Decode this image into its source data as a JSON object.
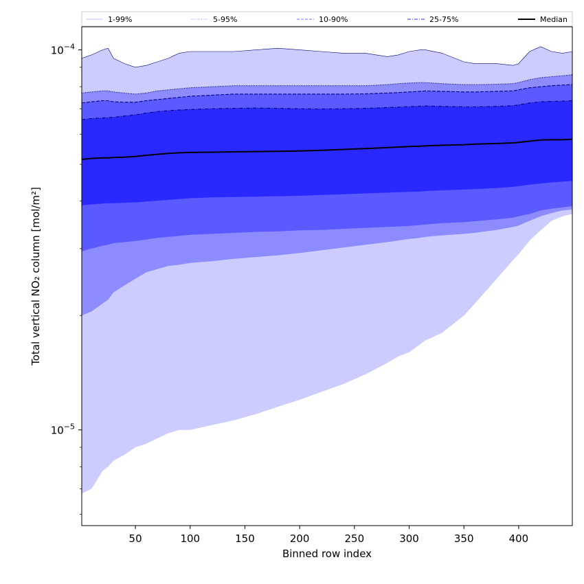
{
  "chart_data": {
    "type": "area",
    "title": "",
    "xlabel": "Binned row index",
    "ylabel": "Total vertical NO₂ column [mol/m²]",
    "xlim": [
      1,
      449
    ],
    "ylim": [
      5.6e-06,
      0.000115
    ],
    "yscale": "log",
    "xticks": [
      50,
      100,
      150,
      200,
      250,
      300,
      350,
      400
    ],
    "yticks": [
      {
        "value": 1e-05,
        "base": "10",
        "exp": "−5"
      },
      {
        "value": 0.0001,
        "base": "10",
        "exp": "−4"
      }
    ],
    "grid": false,
    "legend_position": "top",
    "x": [
      1,
      10,
      20,
      25,
      30,
      40,
      50,
      60,
      70,
      80,
      90,
      100,
      120,
      140,
      160,
      180,
      200,
      220,
      240,
      260,
      280,
      290,
      300,
      310,
      315,
      330,
      350,
      360,
      380,
      395,
      400,
      410,
      420,
      430,
      440,
      449
    ],
    "bands": [
      {
        "name": "1-99%",
        "lower": [
          6.8e-06,
          7e-06,
          7.8e-06,
          8e-06,
          8.3e-06,
          8.6e-06,
          9e-06,
          9.2e-06,
          9.5e-06,
          9.8e-06,
          1e-05,
          1e-05,
          1.03e-05,
          1.06e-05,
          1.1e-05,
          1.15e-05,
          1.2e-05,
          1.26e-05,
          1.32e-05,
          1.4e-05,
          1.5e-05,
          1.56e-05,
          1.6e-05,
          1.68e-05,
          1.72e-05,
          1.8e-05,
          2e-05,
          2.15e-05,
          2.5e-05,
          2.8e-05,
          2.9e-05,
          3.15e-05,
          3.35e-05,
          3.55e-05,
          3.65e-05,
          3.7e-05
        ],
        "upper": [
          9.5e-05,
          9.7e-05,
          0.0001,
          0.000101,
          9.5e-05,
          9.2e-05,
          9e-05,
          9.1e-05,
          9.3e-05,
          9.5e-05,
          9.8e-05,
          9.9e-05,
          9.9e-05,
          9.9e-05,
          0.0001,
          0.000101,
          0.0001,
          9.9e-05,
          9.8e-05,
          9.8e-05,
          9.6e-05,
          9.7e-05,
          9.9e-05,
          0.0001,
          0.0001,
          9.8e-05,
          9.3e-05,
          9.2e-05,
          9.2e-05,
          9.1e-05,
          9.2e-05,
          9.9e-05,
          0.000102,
          9.9e-05,
          9.8e-05,
          9.9e-05
        ]
      },
      {
        "name": "5-95%",
        "lower": [
          2e-05,
          2.05e-05,
          2.15e-05,
          2.2e-05,
          2.3e-05,
          2.4e-05,
          2.5e-05,
          2.6e-05,
          2.65e-05,
          2.7e-05,
          2.72e-05,
          2.75e-05,
          2.78e-05,
          2.82e-05,
          2.85e-05,
          2.88e-05,
          2.92e-05,
          2.97e-05,
          3.02e-05,
          3.07e-05,
          3.12e-05,
          3.15e-05,
          3.18e-05,
          3.2e-05,
          3.22e-05,
          3.25e-05,
          3.28e-05,
          3.3e-05,
          3.36e-05,
          3.42e-05,
          3.45e-05,
          3.55e-05,
          3.65e-05,
          3.72e-05,
          3.78e-05,
          3.8e-05
        ],
        "upper": [
          7.7e-05,
          7.75e-05,
          7.8e-05,
          7.8e-05,
          7.75e-05,
          7.7e-05,
          7.65e-05,
          7.7e-05,
          7.8e-05,
          7.85e-05,
          7.9e-05,
          7.95e-05,
          8e-05,
          8.05e-05,
          8.05e-05,
          8.05e-05,
          8.05e-05,
          8.05e-05,
          8.05e-05,
          8.05e-05,
          8.1e-05,
          8.15e-05,
          8.18e-05,
          8.2e-05,
          8.2e-05,
          8.15e-05,
          8.1e-05,
          8.1e-05,
          8.12e-05,
          8.15e-05,
          8.2e-05,
          8.35e-05,
          8.45e-05,
          8.5e-05,
          8.55e-05,
          8.6e-05
        ]
      },
      {
        "name": "10-90%",
        "lower": [
          2.95e-05,
          3e-05,
          3.05e-05,
          3.07e-05,
          3.1e-05,
          3.12e-05,
          3.14e-05,
          3.17e-05,
          3.2e-05,
          3.22e-05,
          3.24e-05,
          3.26e-05,
          3.28e-05,
          3.3e-05,
          3.32e-05,
          3.33e-05,
          3.35e-05,
          3.36e-05,
          3.38e-05,
          3.4e-05,
          3.42e-05,
          3.43e-05,
          3.44e-05,
          3.46e-05,
          3.47e-05,
          3.5e-05,
          3.52e-05,
          3.54e-05,
          3.58e-05,
          3.62e-05,
          3.65e-05,
          3.7e-05,
          3.78e-05,
          3.82e-05,
          3.85e-05,
          3.88e-05
        ],
        "upper": [
          7.25e-05,
          7.3e-05,
          7.35e-05,
          7.35e-05,
          7.3e-05,
          7.28e-05,
          7.28e-05,
          7.35e-05,
          7.4e-05,
          7.45e-05,
          7.5e-05,
          7.55e-05,
          7.6e-05,
          7.65e-05,
          7.65e-05,
          7.65e-05,
          7.65e-05,
          7.65e-05,
          7.65e-05,
          7.66e-05,
          7.7e-05,
          7.72e-05,
          7.75e-05,
          7.78e-05,
          7.8e-05,
          7.78e-05,
          7.75e-05,
          7.75e-05,
          7.78e-05,
          7.8e-05,
          7.85e-05,
          7.95e-05,
          8e-05,
          8.05e-05,
          8.08e-05,
          8.1e-05
        ]
      },
      {
        "name": "25-75%",
        "lower": [
          3.9e-05,
          3.92e-05,
          3.94e-05,
          3.95e-05,
          3.95e-05,
          3.96e-05,
          3.97e-05,
          3.99e-05,
          4.01e-05,
          4.03e-05,
          4.05e-05,
          4.07e-05,
          4.09e-05,
          4.1e-05,
          4.11e-05,
          4.12e-05,
          4.13e-05,
          4.15e-05,
          4.17e-05,
          4.19e-05,
          4.21e-05,
          4.22e-05,
          4.23e-05,
          4.24e-05,
          4.25e-05,
          4.27e-05,
          4.29e-05,
          4.3e-05,
          4.33e-05,
          4.36e-05,
          4.38e-05,
          4.42e-05,
          4.45e-05,
          4.48e-05,
          4.5e-05,
          4.52e-05
        ],
        "upper": [
          6.55e-05,
          6.6e-05,
          6.62e-05,
          6.63e-05,
          6.65e-05,
          6.7e-05,
          6.75e-05,
          6.82e-05,
          6.88e-05,
          6.92e-05,
          6.95e-05,
          6.97e-05,
          7e-05,
          7.02e-05,
          7.03e-05,
          7.02e-05,
          7e-05,
          6.99e-05,
          7e-05,
          7.02e-05,
          7.05e-05,
          7.07e-05,
          7.09e-05,
          7.11e-05,
          7.12e-05,
          7.1e-05,
          7.08e-05,
          7.08e-05,
          7.1e-05,
          7.13e-05,
          7.17e-05,
          7.25e-05,
          7.3e-05,
          7.32e-05,
          7.33e-05,
          7.35e-05
        ]
      }
    ],
    "median": {
      "name": "Median",
      "values": [
        5.15e-05,
        5.18e-05,
        5.2e-05,
        5.2e-05,
        5.21e-05,
        5.22e-05,
        5.24e-05,
        5.28e-05,
        5.31e-05,
        5.34e-05,
        5.36e-05,
        5.37e-05,
        5.38e-05,
        5.39e-05,
        5.4e-05,
        5.41e-05,
        5.42e-05,
        5.44e-05,
        5.47e-05,
        5.5e-05,
        5.53e-05,
        5.55e-05,
        5.57e-05,
        5.58e-05,
        5.59e-05,
        5.61e-05,
        5.63e-05,
        5.65e-05,
        5.67e-05,
        5.69e-05,
        5.71e-05,
        5.75e-05,
        5.79e-05,
        5.8e-05,
        5.8e-05,
        5.82e-05
      ]
    },
    "legend": [
      {
        "label": "1-99%",
        "color": "#ccccff",
        "dash": "solid"
      },
      {
        "label": "5-95%",
        "color": "#aaaaff",
        "dash": "dotted"
      },
      {
        "label": "10-90%",
        "color": "#8888ff",
        "dash": "dashed"
      },
      {
        "label": "25-75%",
        "color": "#5555ff",
        "dash": "dashdot"
      },
      {
        "label": "Median",
        "color": "#000000",
        "dash": "solid"
      }
    ],
    "colors": {
      "band_1_99": "#ccccff",
      "band_5_95": "#8c8cff",
      "band_10_90": "#5a5aff",
      "band_25_75": "#2828ff",
      "median": "#000000"
    }
  }
}
